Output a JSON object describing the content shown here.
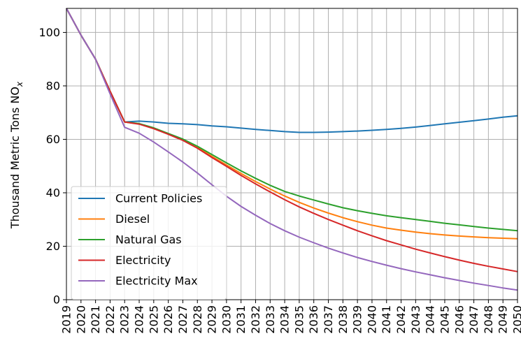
{
  "chart_data": {
    "type": "line",
    "title": "",
    "xlabel": "",
    "ylabel": "Thousand Metric Tons NO",
    "ylabel_subscript": "x",
    "x": [
      2019,
      2020,
      2021,
      2022,
      2023,
      2024,
      2025,
      2026,
      2027,
      2028,
      2029,
      2030,
      2031,
      2032,
      2033,
      2034,
      2035,
      2036,
      2037,
      2038,
      2039,
      2040,
      2041,
      2042,
      2043,
      2044,
      2045,
      2046,
      2047,
      2048,
      2049,
      2050
    ],
    "x_tick_labels": [
      "2019",
      "2020",
      "2021",
      "2022",
      "2023",
      "2024",
      "2025",
      "2026",
      "2027",
      "2028",
      "2029",
      "2030",
      "2031",
      "2032",
      "2033",
      "2034",
      "2035",
      "2036",
      "2037",
      "2038",
      "2039",
      "2040",
      "2041",
      "2042",
      "2043",
      "2044",
      "2045",
      "2046",
      "2047",
      "2048",
      "2049",
      "2050"
    ],
    "xlim": [
      2019,
      2050
    ],
    "ylim": [
      0,
      109
    ],
    "y_ticks": [
      0,
      20,
      40,
      60,
      80,
      100
    ],
    "y_tick_labels": [
      "0",
      "20",
      "40",
      "60",
      "80",
      "100"
    ],
    "grid": true,
    "legend_position": "lower-left",
    "series": [
      {
        "name": "Current Policies",
        "color": "#1f77b4",
        "values": [
          109,
          99,
          90,
          78,
          66.5,
          66.8,
          66.5,
          66.0,
          65.8,
          65.5,
          65.0,
          64.7,
          64.2,
          63.7,
          63.3,
          62.9,
          62.6,
          62.6,
          62.7,
          62.9,
          63.1,
          63.4,
          63.7,
          64.1,
          64.6,
          65.2,
          65.8,
          66.4,
          67.0,
          67.6,
          68.3,
          68.8
        ]
      },
      {
        "name": "Diesel",
        "color": "#ff7f0e",
        "values": [
          109,
          99,
          90,
          78,
          66.5,
          65.8,
          64.2,
          62.0,
          59.8,
          57.0,
          53.6,
          50.4,
          47.2,
          44.2,
          41.4,
          38.8,
          36.4,
          34.3,
          32.4,
          30.7,
          29.2,
          27.9,
          26.8,
          26.0,
          25.3,
          24.7,
          24.2,
          23.8,
          23.5,
          23.2,
          23.0,
          22.8
        ]
      },
      {
        "name": "Natural Gas",
        "color": "#2ca02c",
        "values": [
          109,
          99,
          90,
          78,
          66.5,
          65.9,
          64.3,
          62.2,
          60.1,
          57.4,
          54.3,
          51.2,
          48.2,
          45.4,
          42.8,
          40.5,
          38.8,
          37.3,
          35.8,
          34.4,
          33.3,
          32.3,
          31.4,
          30.7,
          30.0,
          29.3,
          28.6,
          28.0,
          27.4,
          26.8,
          26.3,
          25.8
        ]
      },
      {
        "name": "Electricity",
        "color": "#d62728",
        "values": [
          109,
          99,
          90,
          78,
          66.5,
          65.7,
          64.0,
          61.9,
          59.6,
          56.7,
          53.2,
          49.9,
          46.5,
          43.3,
          40.3,
          37.4,
          34.7,
          32.3,
          30.0,
          27.9,
          25.8,
          23.9,
          22.1,
          20.5,
          18.9,
          17.5,
          16.1,
          14.8,
          13.6,
          12.5,
          11.5,
          10.5
        ]
      },
      {
        "name": "Electricity Max",
        "color": "#9467bd",
        "values": [
          109,
          99,
          90,
          77,
          64.5,
          62.3,
          59.0,
          55.3,
          51.5,
          47.4,
          43.0,
          38.7,
          34.9,
          31.6,
          28.5,
          25.8,
          23.4,
          21.3,
          19.3,
          17.5,
          15.8,
          14.3,
          12.9,
          11.6,
          10.4,
          9.3,
          8.2,
          7.2,
          6.2,
          5.3,
          4.4,
          3.6
        ]
      }
    ]
  }
}
